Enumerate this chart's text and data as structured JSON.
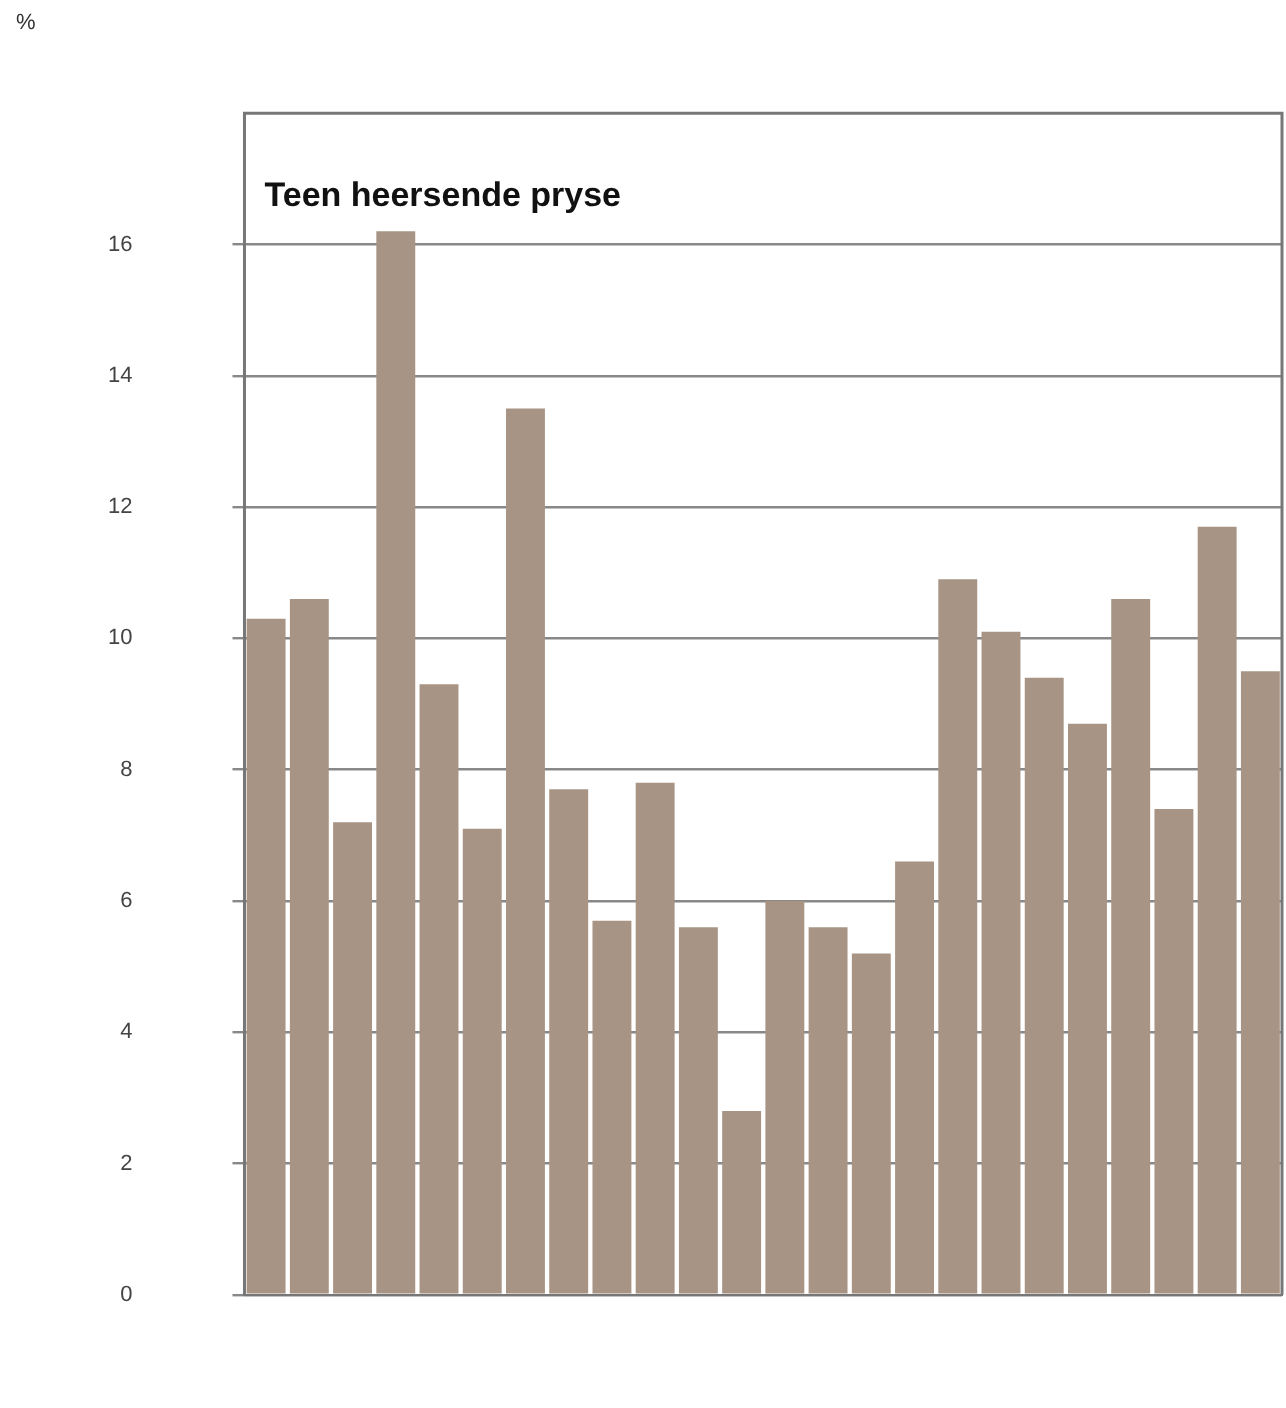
{
  "chart_data": {
    "type": "bar",
    "title": "Teen heersende pryse",
    "ylabel": "%",
    "categories": [
      null,
      null,
      null,
      null,
      null,
      null,
      null,
      null,
      null,
      null,
      null,
      null,
      null,
      null,
      null,
      null,
      null,
      null,
      null,
      null,
      null,
      null,
      null,
      null
    ],
    "values": [
      10.3,
      10.6,
      7.2,
      16.2,
      9.3,
      7.1,
      13.5,
      7.7,
      5.7,
      7.8,
      5.6,
      2.8,
      6.0,
      5.6,
      5.2,
      6.6,
      10.9,
      10.1,
      9.4,
      8.7,
      10.6,
      7.4,
      11.7,
      9.5
    ],
    "color": "#a89484",
    "ylim": [
      0,
      18
    ],
    "yticks": [
      0,
      2,
      4,
      6,
      8,
      10,
      12,
      14,
      16
    ],
    "grid": "y"
  }
}
